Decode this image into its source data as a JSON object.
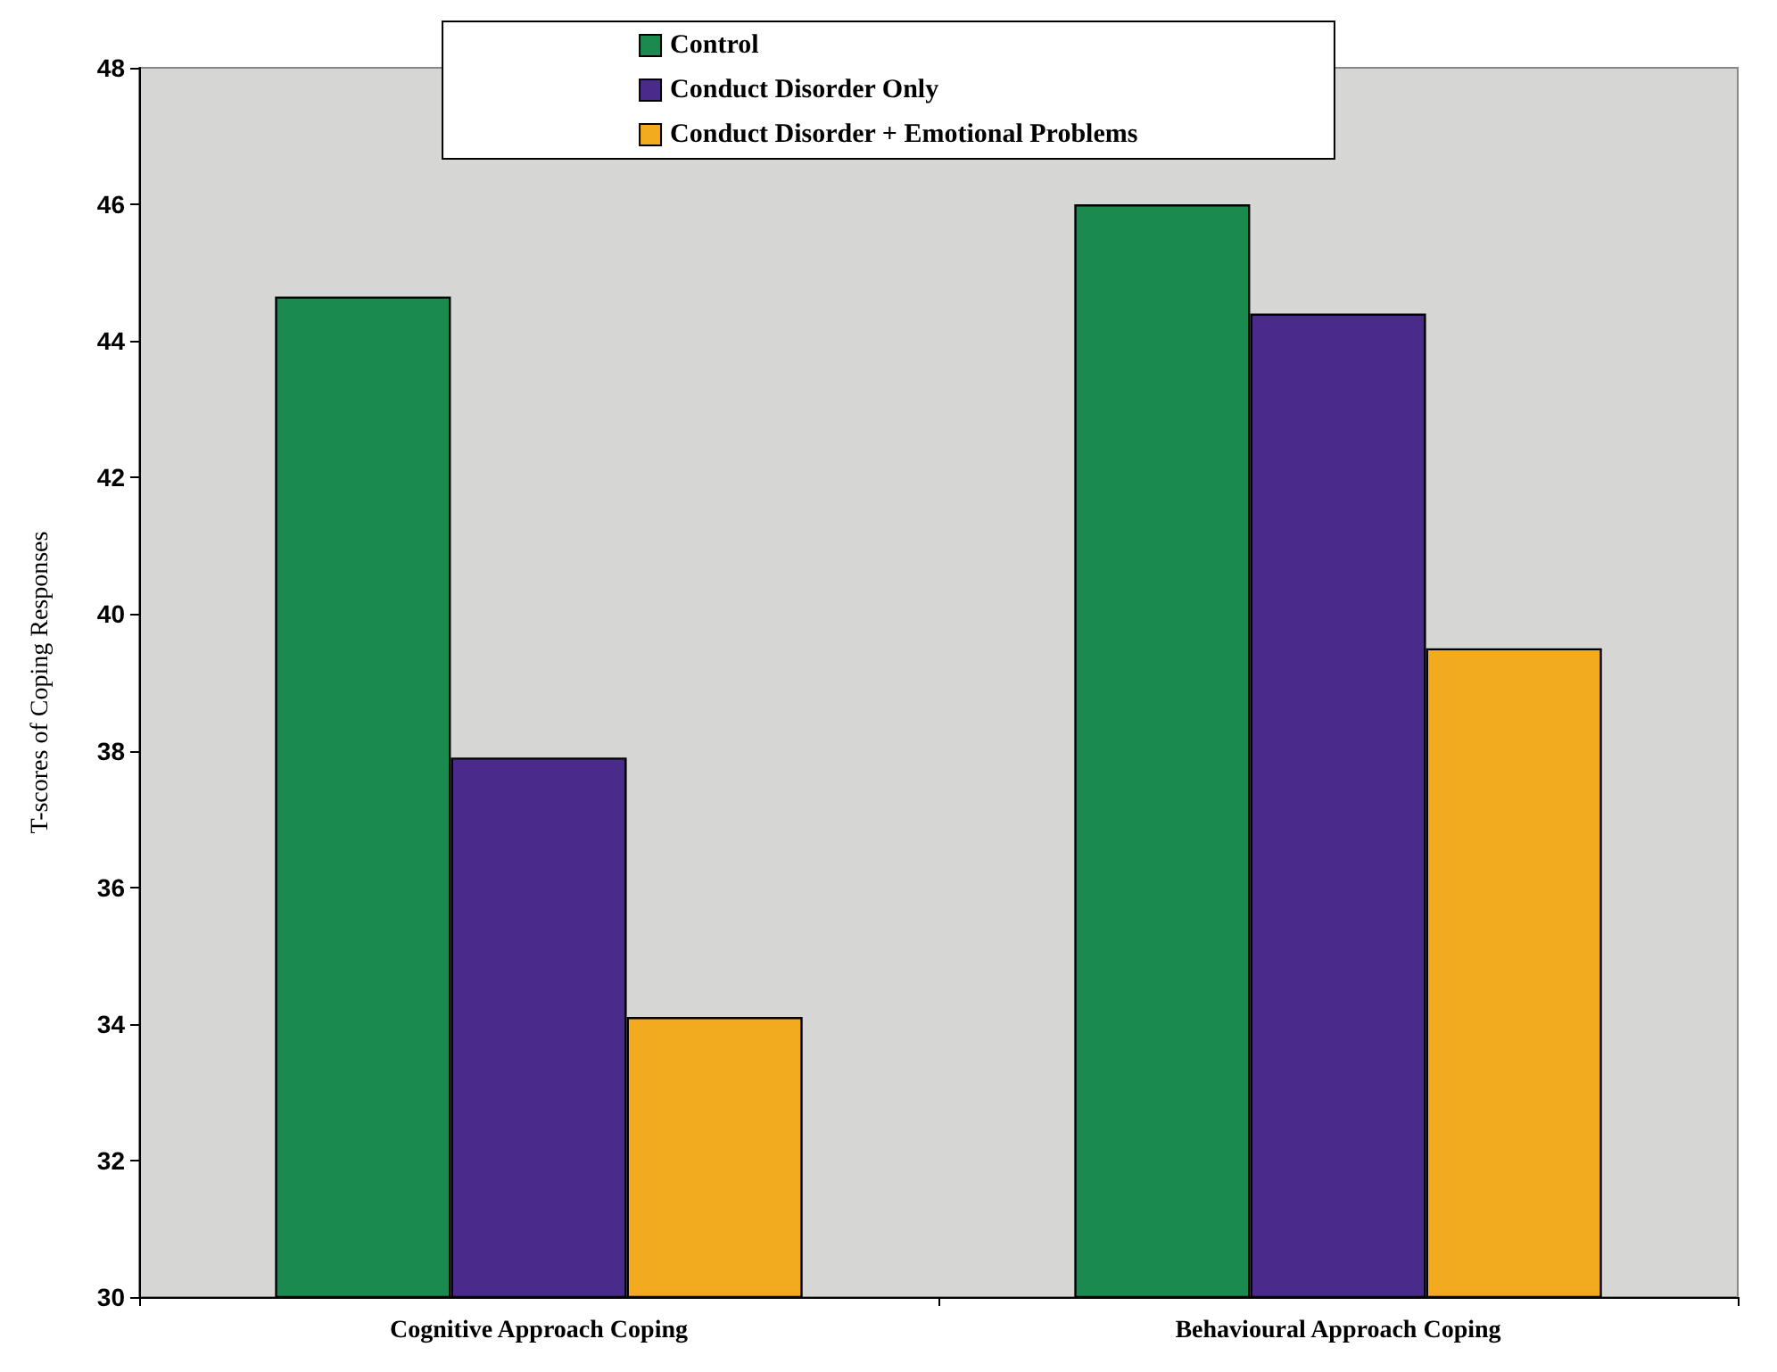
{
  "chart_data": {
    "type": "bar",
    "ylabel": "T-scores of Coping Responses",
    "categories": [
      "Cognitive Approach Coping",
      "Behavioural Approach Coping"
    ],
    "series": [
      {
        "name": "Control",
        "color": "#1b8a4f",
        "values": [
          44.65,
          46.0
        ]
      },
      {
        "name": "Conduct Disorder Only",
        "color": "#4a2b8c",
        "values": [
          37.9,
          44.4
        ]
      },
      {
        "name": "Conduct Disorder + Emotional Problems",
        "color": "#f2aa1e",
        "values": [
          34.1,
          39.5
        ]
      }
    ],
    "ylim": [
      30,
      48
    ],
    "yticks": [
      30,
      32,
      34,
      36,
      38,
      40,
      42,
      44,
      46,
      48
    ],
    "grid": false,
    "legend": "top"
  }
}
